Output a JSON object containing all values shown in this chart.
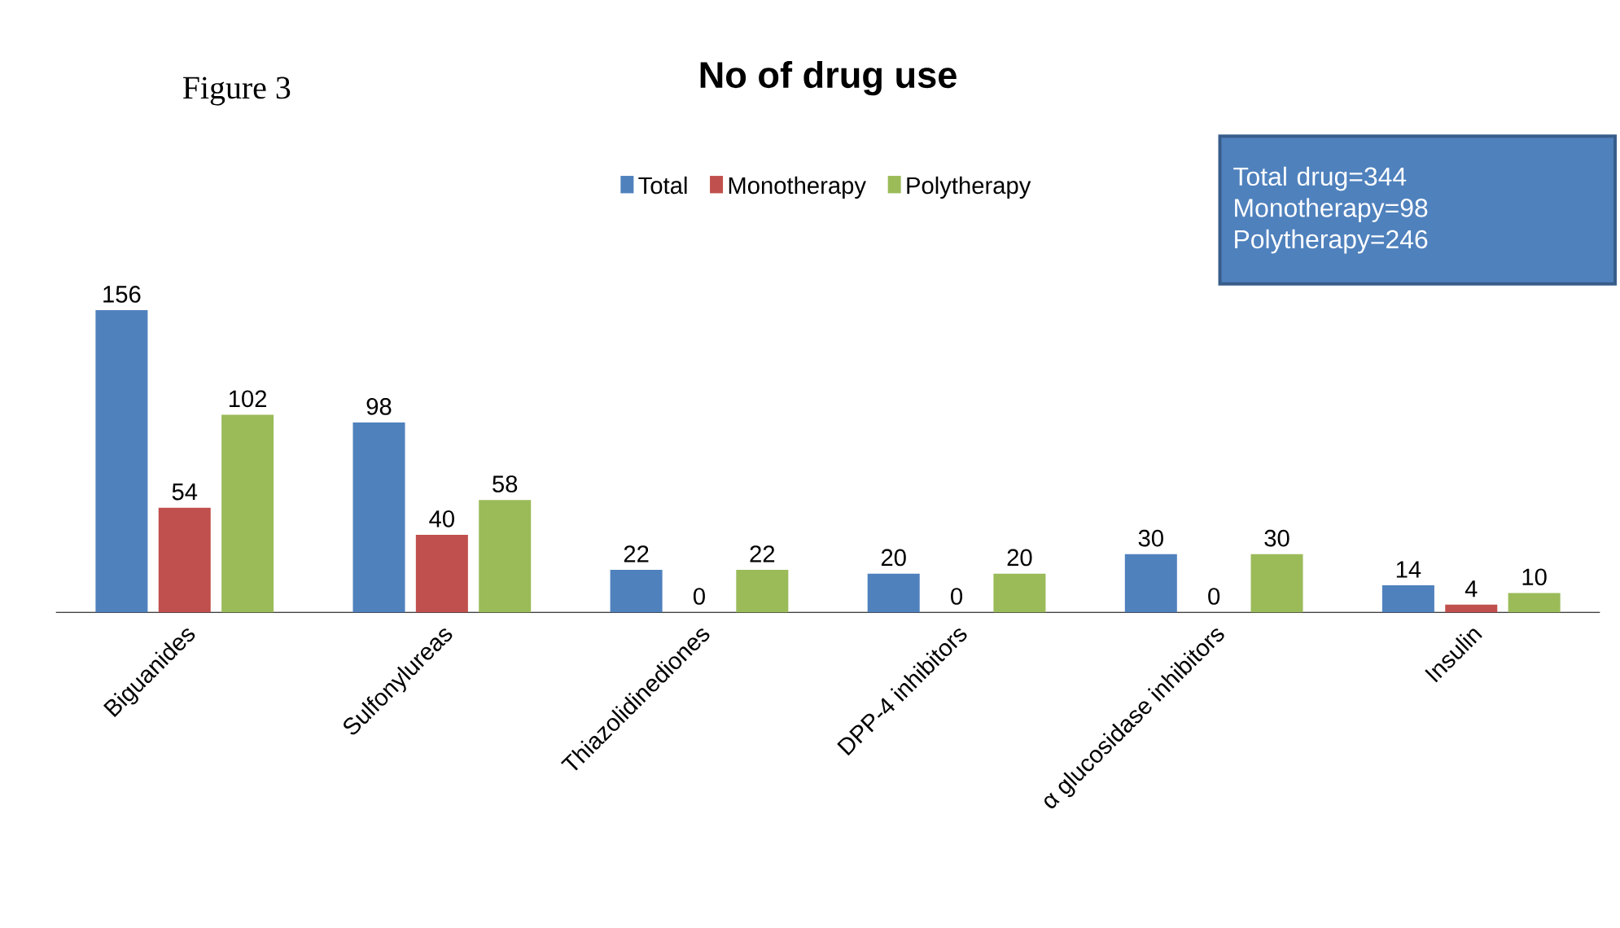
{
  "chart_data": {
    "type": "bar",
    "title": "No of drug use",
    "categories": [
      "Biguanides",
      "Sulfonylureas",
      "Thiazolidinediones",
      "DPP-4 inhibitors",
      "α glucosidase inhibitors",
      "Insulin"
    ],
    "series": [
      {
        "name": "Total",
        "color": "#4f81bd",
        "values": [
          156,
          98,
          22,
          20,
          30,
          14
        ]
      },
      {
        "name": "Monotherapy",
        "color": "#c0504d",
        "values": [
          54,
          40,
          0,
          0,
          0,
          4
        ]
      },
      {
        "name": "Polytherapy",
        "color": "#9bbb59",
        "values": [
          102,
          58,
          22,
          20,
          30,
          10
        ]
      }
    ],
    "data_labels": true,
    "legend": "top",
    "annotations": [
      "Figure 3",
      "Total drug=344",
      "Monotherapy=98",
      "Polytherapy=246"
    ]
  }
}
